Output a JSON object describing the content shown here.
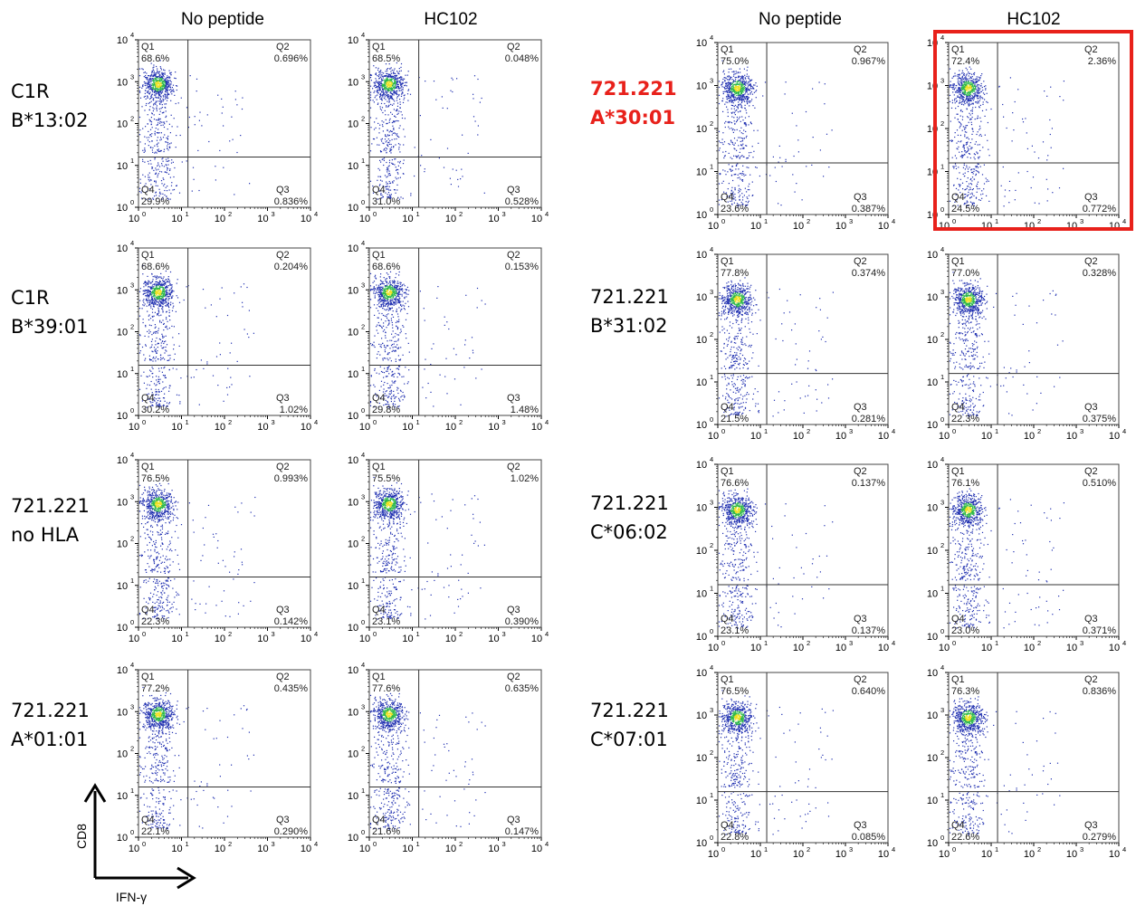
{
  "column_headers": {
    "left_no_peptide": "No peptide",
    "left_hc102": "HC102",
    "right_no_peptide": "No peptide",
    "right_hc102": "HC102"
  },
  "row_labels": {
    "left": [
      {
        "line1": "C1R",
        "line2": "B*13:02"
      },
      {
        "line1": "C1R",
        "line2": "B*39:01"
      },
      {
        "line1": "721.221",
        "line2": "no HLA"
      },
      {
        "line1": "721.221",
        "line2": "A*01:01"
      }
    ],
    "right": [
      {
        "line1": "721.221",
        "line2": "A*30:01"
      },
      {
        "line1": "721.221",
        "line2": "B*31:02"
      },
      {
        "line1": "721.221",
        "line2": "C*06:02"
      },
      {
        "line1": "721.221",
        "line2": "C*07:01"
      }
    ]
  },
  "axes": {
    "x_label": "IFN-γ",
    "y_label": "CD8",
    "tick_base": "10",
    "tick_exponents": [
      "0",
      "1",
      "2",
      "3",
      "4"
    ],
    "scale": "log",
    "range": [
      1,
      10000
    ]
  },
  "quadrant_names": [
    "Q1",
    "Q2",
    "Q3",
    "Q4"
  ],
  "colors": {
    "highlight_label": "#e8211b",
    "highlight_box": "#e8211b",
    "dots": "#1f2fb0",
    "density_core": "#2db84a",
    "density_peak": "#f0e020"
  },
  "chart_data": [
    {
      "type": "scatter",
      "row": "C1R B*13:02",
      "condition": "No peptide",
      "Q1": "68.6%",
      "Q2": "0.696%",
      "Q3": "0.836%",
      "Q4": "29.9%"
    },
    {
      "type": "scatter",
      "row": "C1R B*13:02",
      "condition": "HC102",
      "Q1": "68.5%",
      "Q2": "0.048%",
      "Q3": "0.528%",
      "Q4": "31.0%"
    },
    {
      "type": "scatter",
      "row": "721.221 A*30:01",
      "condition": "No peptide",
      "Q1": "75.0%",
      "Q2": "0.967%",
      "Q3": "0.387%",
      "Q4": "23.6%"
    },
    {
      "type": "scatter",
      "row": "721.221 A*30:01",
      "condition": "HC102",
      "Q1": "72.4%",
      "Q2": "2.36%",
      "Q3": "0.772%",
      "Q4": "24.5%",
      "highlighted": true
    },
    {
      "type": "scatter",
      "row": "C1R B*39:01",
      "condition": "No peptide",
      "Q1": "68.6%",
      "Q2": "0.204%",
      "Q3": "1.02%",
      "Q4": "30.2%"
    },
    {
      "type": "scatter",
      "row": "C1R B*39:01",
      "condition": "HC102",
      "Q1": "68.6%",
      "Q2": "0.153%",
      "Q3": "1.48%",
      "Q4": "29.8%"
    },
    {
      "type": "scatter",
      "row": "721.221 B*31:02",
      "condition": "No peptide",
      "Q1": "77.8%",
      "Q2": "0.374%",
      "Q3": "0.281%",
      "Q4": "21.5%"
    },
    {
      "type": "scatter",
      "row": "721.221 B*31:02",
      "condition": "HC102",
      "Q1": "77.0%",
      "Q2": "0.328%",
      "Q3": "0.375%",
      "Q4": "22.3%"
    },
    {
      "type": "scatter",
      "row": "721.221 no HLA",
      "condition": "No peptide",
      "Q1": "76.5%",
      "Q2": "0.993%",
      "Q3": "0.142%",
      "Q4": "22.3%"
    },
    {
      "type": "scatter",
      "row": "721.221 no HLA",
      "condition": "HC102",
      "Q1": "75.5%",
      "Q2": "1.02%",
      "Q3": "0.390%",
      "Q4": "23.1%"
    },
    {
      "type": "scatter",
      "row": "721.221 C*06:02",
      "condition": "No peptide",
      "Q1": "76.6%",
      "Q2": "0.137%",
      "Q3": "0.137%",
      "Q4": "23.1%"
    },
    {
      "type": "scatter",
      "row": "721.221 C*06:02",
      "condition": "HC102",
      "Q1": "76.1%",
      "Q2": "0.510%",
      "Q3": "0.371%",
      "Q4": "23.0%"
    },
    {
      "type": "scatter",
      "row": "721.221 A*01:01",
      "condition": "No peptide",
      "Q1": "77.2%",
      "Q2": "0.435%",
      "Q3": "0.290%",
      "Q4": "22.1%"
    },
    {
      "type": "scatter",
      "row": "721.221 A*01:01",
      "condition": "HC102",
      "Q1": "77.6%",
      "Q2": "0.635%",
      "Q3": "0.147%",
      "Q4": "21.6%"
    },
    {
      "type": "scatter",
      "row": "721.221 C*07:01",
      "condition": "No peptide",
      "Q1": "76.5%",
      "Q2": "0.640%",
      "Q3": "0.085%",
      "Q4": "22.8%"
    },
    {
      "type": "scatter",
      "row": "721.221 C*07:01",
      "condition": "HC102",
      "Q1": "76.3%",
      "Q2": "0.836%",
      "Q3": "0.279%",
      "Q4": "22.6%"
    }
  ]
}
